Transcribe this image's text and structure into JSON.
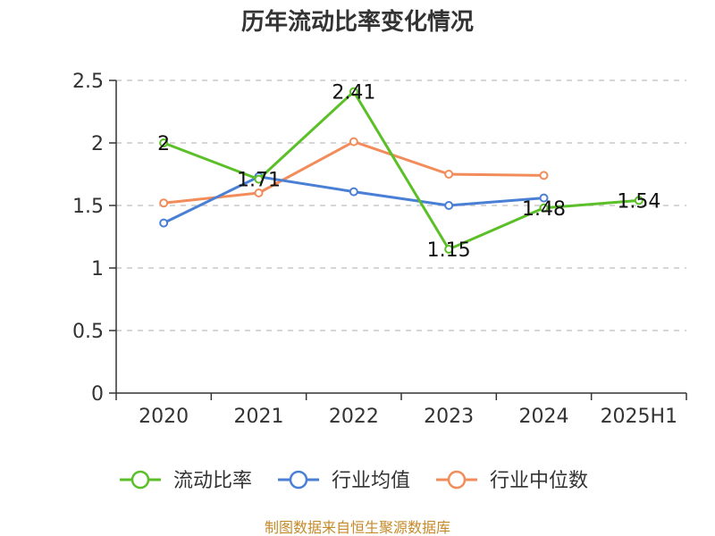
{
  "chart_data": {
    "type": "line",
    "title": "历年流动比率变化情况",
    "categories": [
      "2020",
      "2021",
      "2022",
      "2023",
      "2024",
      "2025H1"
    ],
    "ylim": [
      0,
      2.5
    ],
    "yticks": [
      "0",
      "0.5",
      "1",
      "1.5",
      "2",
      "2.5"
    ],
    "grid": true,
    "legend_position": "bottom",
    "series": [
      {
        "name": "流动比率",
        "color": "#5bbf28",
        "values": [
          2,
          1.71,
          2.41,
          1.15,
          1.48,
          1.54
        ],
        "labels": [
          "2",
          "1.71",
          "2.41",
          "1.15",
          "1.48",
          "1.54"
        ],
        "show_labels": true
      },
      {
        "name": "行业均值",
        "color": "#4a7fd6",
        "values": [
          1.36,
          1.73,
          1.61,
          1.5,
          1.56,
          null
        ],
        "show_labels": false
      },
      {
        "name": "行业中位数",
        "color": "#f28c5a",
        "values": [
          1.52,
          1.6,
          2.01,
          1.75,
          1.74,
          null
        ],
        "show_labels": false
      }
    ],
    "source": "制图数据来自恒生聚源数据库"
  }
}
